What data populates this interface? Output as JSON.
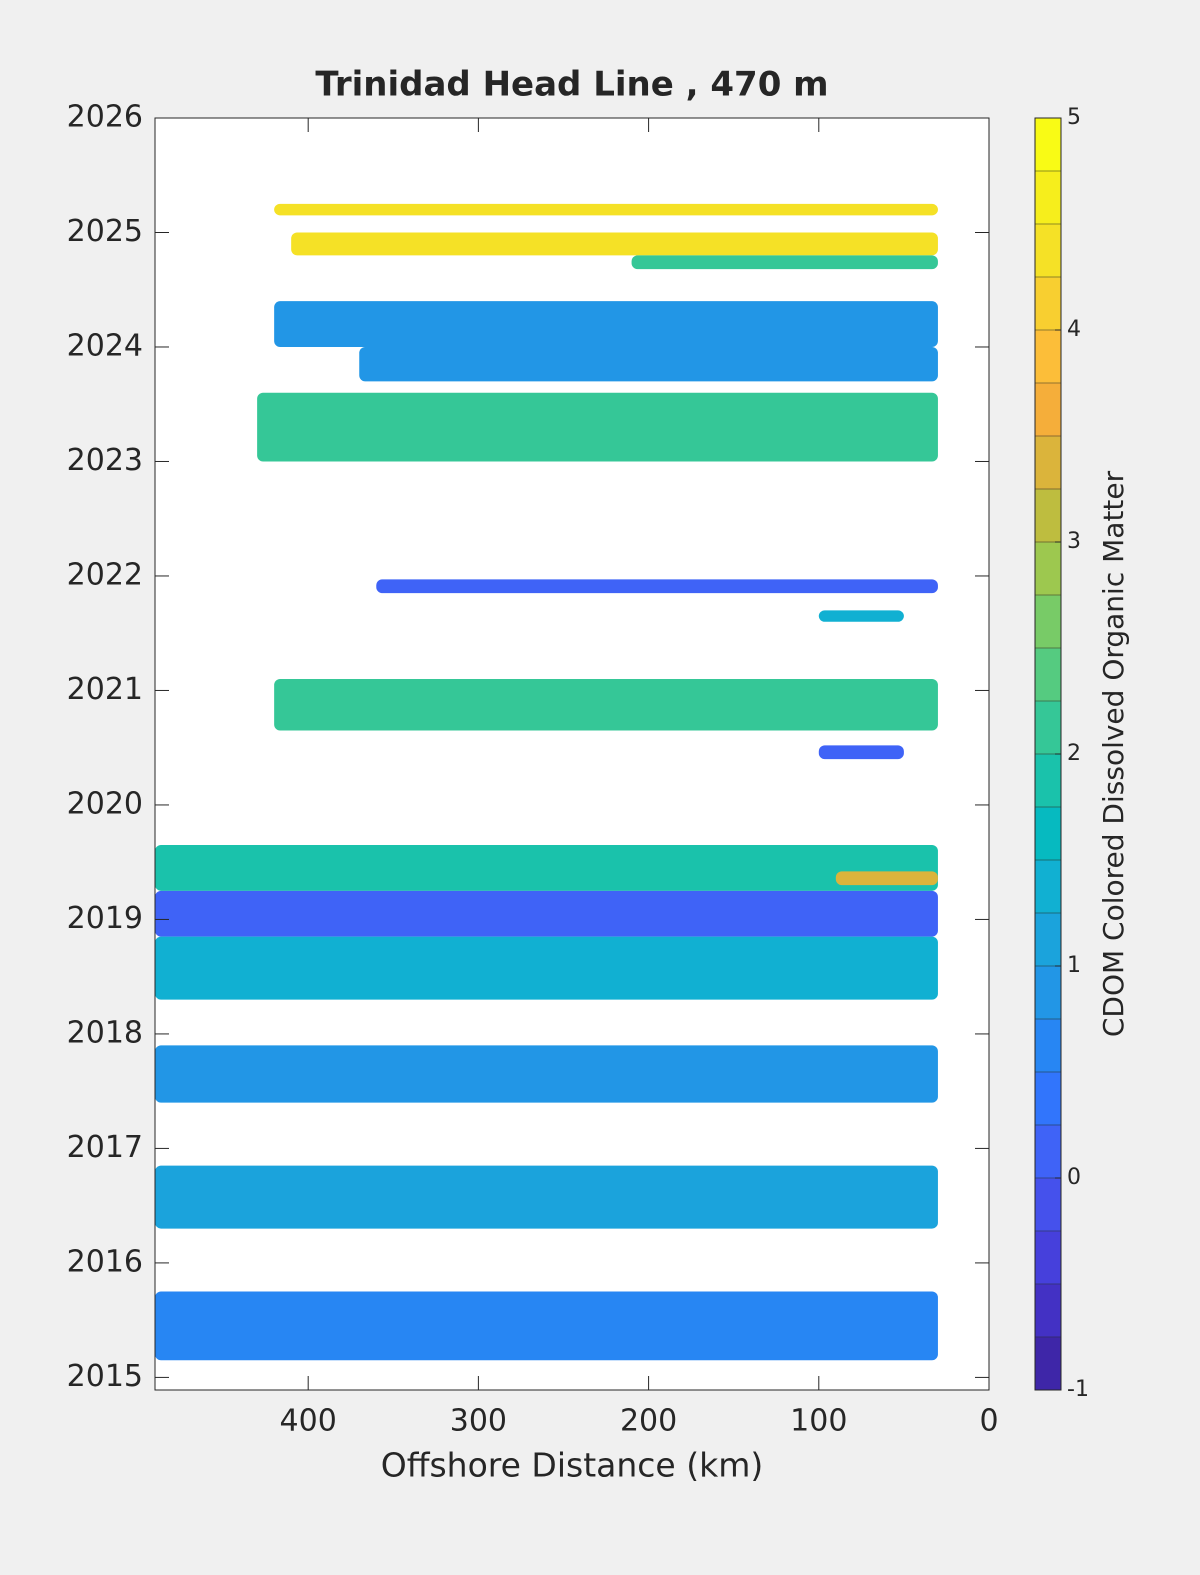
{
  "chart_data": {
    "type": "contourf",
    "title": "Trinidad Head Line , 470 m",
    "x_label": "Offshore Distance (km)",
    "colorbar_label": "CDOM Colored Dissolved Organic Matter",
    "xlim": [
      490,
      0
    ],
    "xticks": [
      400,
      300,
      200,
      100,
      0
    ],
    "ylim": [
      2014.89,
      2026
    ],
    "yticks": [
      2015,
      2016,
      2017,
      2018,
      2019,
      2020,
      2021,
      2022,
      2023,
      2024,
      2025,
      2026
    ],
    "clim": [
      -1,
      5
    ],
    "cticks": [
      -1,
      0,
      1,
      2,
      3,
      4,
      5
    ],
    "colormap": [
      "#3e26a8",
      "#4331c4",
      "#4640dc",
      "#4551ec",
      "#3f63f7",
      "#3175fc",
      "#2786f3",
      "#2296e6",
      "#1ba3dc",
      "#11b0d2",
      "#06bac0",
      "#1ac2ab",
      "#35c797",
      "#55cb80",
      "#78cb67",
      "#9dc84f",
      "#bebd3f",
      "#dbb43b",
      "#f5ae3a",
      "#fcbe39",
      "#f8cf30",
      "#f5e126",
      "#f6ee1c",
      "#f9fb15"
    ],
    "patches": [
      {
        "x": [
          420,
          30
        ],
        "y": [
          2025.15,
          2025.25
        ],
        "value": 4.3
      },
      {
        "x": [
          410,
          30
        ],
        "y": [
          2024.8,
          2025.0
        ],
        "value": 4.4
      },
      {
        "x": [
          210,
          30
        ],
        "y": [
          2024.68,
          2024.8
        ],
        "value": 2.1
      },
      {
        "x": [
          420,
          30
        ],
        "y": [
          2024.0,
          2024.4
        ],
        "value": 0.8
      },
      {
        "x": [
          370,
          30
        ],
        "y": [
          2023.7,
          2024.0
        ],
        "value": 0.8
      },
      {
        "x": [
          430,
          30
        ],
        "y": [
          2023.0,
          2023.6
        ],
        "value": 2.1
      },
      {
        "x": [
          360,
          30
        ],
        "y": [
          2021.85,
          2021.97
        ],
        "value": 0.2
      },
      {
        "x": [
          100,
          50
        ],
        "y": [
          2021.6,
          2021.7
        ],
        "value": 1.4
      },
      {
        "x": [
          420,
          30
        ],
        "y": [
          2020.65,
          2021.1
        ],
        "value": 2.0
      },
      {
        "x": [
          100,
          50
        ],
        "y": [
          2020.4,
          2020.52
        ],
        "value": 0.1
      },
      {
        "x": [
          490,
          30
        ],
        "y": [
          2019.25,
          2019.65
        ],
        "value": 1.9
      },
      {
        "x": [
          90,
          30
        ],
        "y": [
          2019.3,
          2019.42
        ],
        "value": 3.4
      },
      {
        "x": [
          490,
          30
        ],
        "y": [
          2018.85,
          2019.25
        ],
        "value": 0.0
      },
      {
        "x": [
          490,
          30
        ],
        "y": [
          2018.3,
          2018.85
        ],
        "value": 1.3
      },
      {
        "x": [
          490,
          30
        ],
        "y": [
          2017.4,
          2017.9
        ],
        "value": 0.8
      },
      {
        "x": [
          490,
          30
        ],
        "y": [
          2016.3,
          2016.85
        ],
        "value": 1.0
      },
      {
        "x": [
          490,
          30
        ],
        "y": [
          2015.15,
          2015.75
        ],
        "value": 0.5
      }
    ]
  }
}
